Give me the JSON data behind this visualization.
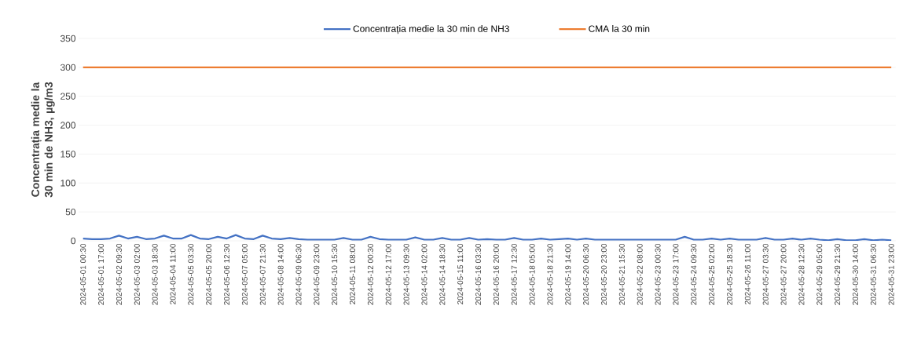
{
  "chart_data": {
    "type": "line",
    "ylabel": "Concentrația medie la 30 min de NH3, µg/m3",
    "categories": [
      "2024-05-01 00:30",
      null,
      "2024-05-01 17:00",
      null,
      "2024-05-02 09:30",
      null,
      "2024-05-03 02:00",
      null,
      "2024-05-03 18:30",
      null,
      "2024-05-04 11:00",
      null,
      "2024-05-05 03:30",
      null,
      "2024-05-05 20:00",
      null,
      "2024-05-06 12:30",
      null,
      "2024-05-07 05:00",
      null,
      "2024-05-07 21:30",
      null,
      "2024-05-08 14:00",
      null,
      "2024-05-09 06:30",
      null,
      "2024-05-09 23:00",
      null,
      "2024-05-10 15:30",
      null,
      "2024-05-11 08:00",
      null,
      "2024-05-12 00:30",
      null,
      "2024-05-12 17:00",
      null,
      "2024-05-13 09:30",
      null,
      "2024-05-14 02:00",
      null,
      "2024-05-14 18:30",
      null,
      "2024-05-15 11:00",
      null,
      "2024-05-16 03:30",
      null,
      "2024-05-16 20:00",
      null,
      "2024-05-17 12:30",
      null,
      "2024-05-18 05:00",
      null,
      "2024-05-18 21:30",
      null,
      "2024-05-19 14:00",
      null,
      "2024-05-20 06:30",
      null,
      "2024-05-20 23:00",
      null,
      "2024-05-21 15:30",
      null,
      "2024-05-22 08:00",
      null,
      "2024-05-23 00:30",
      null,
      "2024-05-23 17:00",
      null,
      "2024-05-24 09:30",
      null,
      "2024-05-25 02:00",
      null,
      "2024-05-25 18:30",
      null,
      "2024-05-26 11:00",
      null,
      "2024-05-27 03:30",
      null,
      "2024-05-27 20:00",
      null,
      "2024-05-28 12:30",
      null,
      "2024-05-29 05:00",
      null,
      "2024-05-29 21:30",
      null,
      "2024-05-30 14:00",
      null,
      "2024-05-31 06:30",
      null,
      "2024-05-31 23:00"
    ],
    "series": [
      {
        "name": "Concentrația medie la 30 min de NH3",
        "color": "#4472c4",
        "values": [
          4,
          3,
          3,
          4,
          9,
          4,
          7,
          3,
          4,
          9,
          4,
          4,
          10,
          4,
          3,
          7,
          4,
          10,
          4,
          3,
          9,
          4,
          3,
          5,
          3,
          2,
          2,
          2,
          2,
          5,
          2,
          2,
          7,
          3,
          2,
          2,
          2,
          6,
          2,
          2,
          5,
          2,
          2,
          5,
          2,
          3,
          2,
          2,
          5,
          2,
          2,
          4,
          2,
          3,
          4,
          2,
          4,
          2,
          2,
          2,
          2,
          2,
          2,
          2,
          2,
          2,
          2,
          7,
          2,
          2,
          4,
          2,
          4,
          2,
          2,
          2,
          5,
          2,
          2,
          4,
          2,
          4,
          2,
          1,
          3,
          1,
          1,
          3,
          1,
          2,
          1
        ]
      },
      {
        "name": "CMA la 30 min",
        "color": "#ed7d31",
        "values": [
          300,
          300,
          300,
          300,
          300,
          300,
          300,
          300,
          300,
          300,
          300,
          300,
          300,
          300,
          300,
          300,
          300,
          300,
          300,
          300,
          300,
          300,
          300,
          300,
          300,
          300,
          300,
          300,
          300,
          300,
          300,
          300,
          300,
          300,
          300,
          300,
          300,
          300,
          300,
          300,
          300,
          300,
          300,
          300,
          300,
          300,
          300,
          300,
          300,
          300,
          300,
          300,
          300,
          300,
          300,
          300,
          300,
          300,
          300,
          300,
          300,
          300,
          300,
          300,
          300,
          300,
          300,
          300,
          300,
          300,
          300,
          300,
          300,
          300,
          300,
          300,
          300,
          300,
          300,
          300,
          300,
          300,
          300,
          300,
          300,
          300,
          300,
          300,
          300,
          300,
          300
        ]
      }
    ],
    "ylim": [
      0,
      350
    ],
    "yticks": [
      0,
      50,
      100,
      150,
      200,
      250,
      300,
      350
    ],
    "grid": "y",
    "legend": "top",
    "marker": "none",
    "line_style": "solid"
  }
}
